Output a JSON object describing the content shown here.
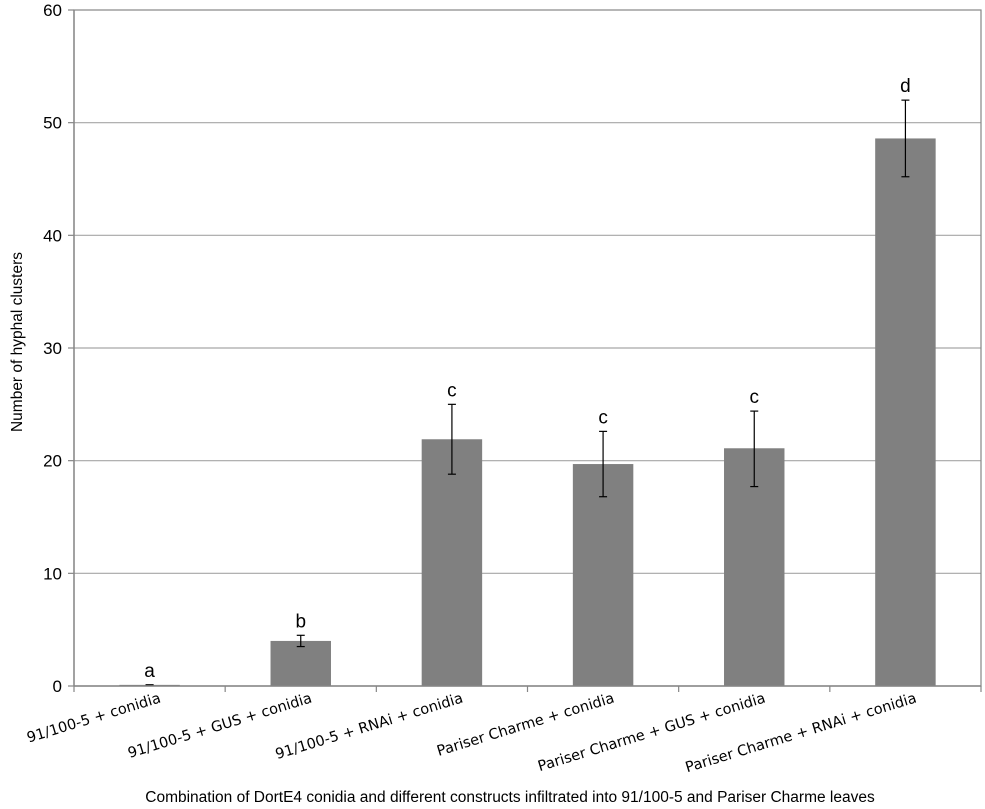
{
  "chart_data": {
    "type": "bar",
    "title": "",
    "xlabel": "Combination of DortE4 conidia and different constructs infiltrated into 91/100-5 and Pariser Charme leaves",
    "ylabel": "Number of hyphal clusters",
    "ylim": [
      0,
      60
    ],
    "yticks": [
      "0",
      "10",
      "20",
      "30",
      "40",
      "50",
      "60"
    ],
    "grid": true,
    "categories": [
      "91/100-5 + conidia",
      "91/100-5 + GUS + conidia",
      "91/100-5 + RNAi + conidia",
      "Pariser Charme + conidia",
      "Pariser Charme + GUS + conidia",
      "Pariser Charme + RNAi + conidia"
    ],
    "values": [
      0.1,
      4.0,
      21.9,
      19.7,
      21.1,
      48.6
    ],
    "error_low": [
      0.1,
      3.5,
      18.8,
      16.8,
      17.7,
      45.2
    ],
    "error_high": [
      0.1,
      4.5,
      25.0,
      22.6,
      24.4,
      52.0
    ],
    "significance_labels": [
      "a",
      "b",
      "c",
      "c",
      "c",
      "d"
    ],
    "bar_color": "#808080",
    "grid_color": "#a6a6a6"
  }
}
